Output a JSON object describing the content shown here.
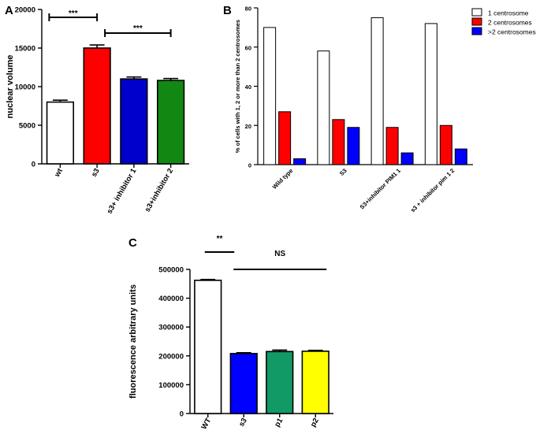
{
  "panels": {
    "A": "A",
    "B": "B",
    "C": "C"
  },
  "chart_data": [
    {
      "id": "A",
      "type": "bar",
      "ylabel": "nuclear volume",
      "xlabel": "",
      "ylim": [
        0,
        20000
      ],
      "yticks": [
        0,
        5000,
        10000,
        15000,
        20000
      ],
      "ytick_labels": [
        "0",
        "5000",
        "10000",
        "15000",
        "20000"
      ],
      "categories": [
        "wt",
        "s3",
        "s3+ inhibitor 1",
        "s3+inhibitor 2"
      ],
      "values": [
        8000,
        15000,
        11000,
        10800
      ],
      "errors": [
        250,
        400,
        250,
        250
      ],
      "colors": [
        "#ffffff",
        "#ff0000",
        "#0000cc",
        "#118811"
      ],
      "significance": [
        {
          "label": "***",
          "from": 0,
          "to": 1
        },
        {
          "label": "***",
          "from": 1,
          "to": 3
        }
      ]
    },
    {
      "id": "B",
      "type": "bar",
      "ylabel": "% of cells with 1, 2 or more than 2 centrosomes",
      "xlabel": "",
      "ylim": [
        0,
        80
      ],
      "yticks": [
        0,
        20,
        40,
        60,
        80
      ],
      "ytick_labels": [
        "0",
        "20",
        "40",
        "60",
        "80"
      ],
      "categories": [
        "Wild type",
        "S3",
        "S3+inhibitor PIM1 1",
        "s3 + inhibitor pim 1 2"
      ],
      "series": [
        {
          "name": "1 centrosome",
          "color": "#ffffff",
          "values": [
            70,
            58,
            75,
            72
          ]
        },
        {
          "name": "2 centrosomes",
          "color": "#ff0000",
          "values": [
            27,
            23,
            19,
            20
          ]
        },
        {
          "name": ">2 centrosomes",
          "color": "#0000ff",
          "values": [
            3,
            19,
            6,
            8
          ]
        }
      ],
      "legend_position": "top-right"
    },
    {
      "id": "C",
      "type": "bar",
      "ylabel": "fluorescence arbitrary units",
      "xlabel": "",
      "ylim": [
        0,
        500000
      ],
      "yticks": [
        0,
        100000,
        200000,
        300000,
        400000,
        500000
      ],
      "ytick_labels": [
        "0",
        "100000",
        "200000",
        "300000",
        "400000",
        "500000"
      ],
      "categories": [
        "WT",
        "s3",
        "p1",
        "p2"
      ],
      "values": [
        462000,
        208000,
        215000,
        216000
      ],
      "errors": [
        3000,
        3000,
        5000,
        3000
      ],
      "colors": [
        "#ffffff",
        "#0000ff",
        "#119966",
        "#ffff00"
      ],
      "significance": [
        {
          "label": "**",
          "from": 0,
          "to": 1
        },
        {
          "label": "NS",
          "from": 1,
          "to": 3
        }
      ]
    }
  ]
}
